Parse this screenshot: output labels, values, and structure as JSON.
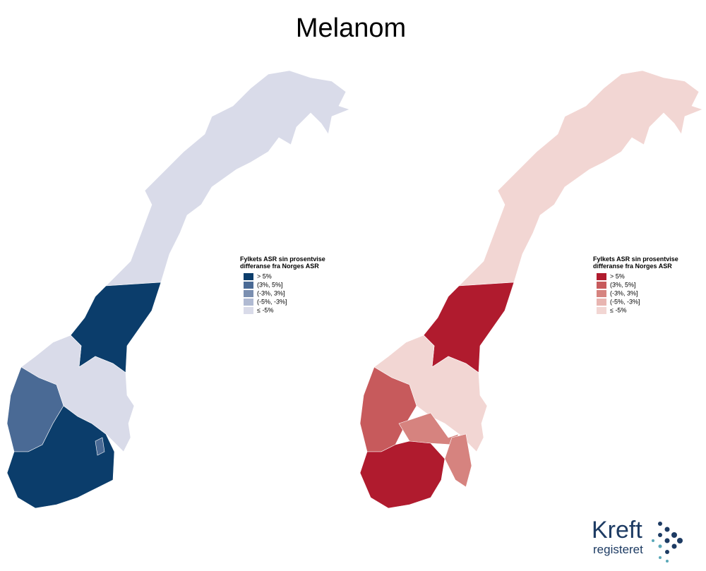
{
  "title": "Melanom",
  "maps": [
    {
      "legend": {
        "title": [
          "Fylkets ASR sin prosentvise",
          "differanse fra Norges ASR"
        ],
        "items": [
          {
            "label": "> 5%",
            "color": "#0b3d6b"
          },
          {
            "label": "(3%, 5%]",
            "color": "#4a6a95"
          },
          {
            "label": "(-3%, 3%]",
            "color": "#7b8fb0"
          },
          {
            "label": "(-5%, -3%]",
            "color": "#b0bad2"
          },
          {
            "label": "≤ -5%",
            "color": "#d9dbe9"
          }
        ]
      }
    },
    {
      "legend": {
        "title": [
          "Fylkets ASR sin prosentvise",
          "differanse fra Norges ASR"
        ],
        "items": [
          {
            "label": "> 5%",
            "color": "#b01b2e"
          },
          {
            "label": "(3%, 5%]",
            "color": "#c75a5c"
          },
          {
            "label": "(-3%, 3%]",
            "color": "#d6837f"
          },
          {
            "label": "(-5%, -3%]",
            "color": "#e8b5b1"
          },
          {
            "label": "≤ -5%",
            "color": "#f2d6d3"
          }
        ]
      }
    }
  ],
  "logo": {
    "name": "Kreft",
    "subtitle": "registeret"
  }
}
